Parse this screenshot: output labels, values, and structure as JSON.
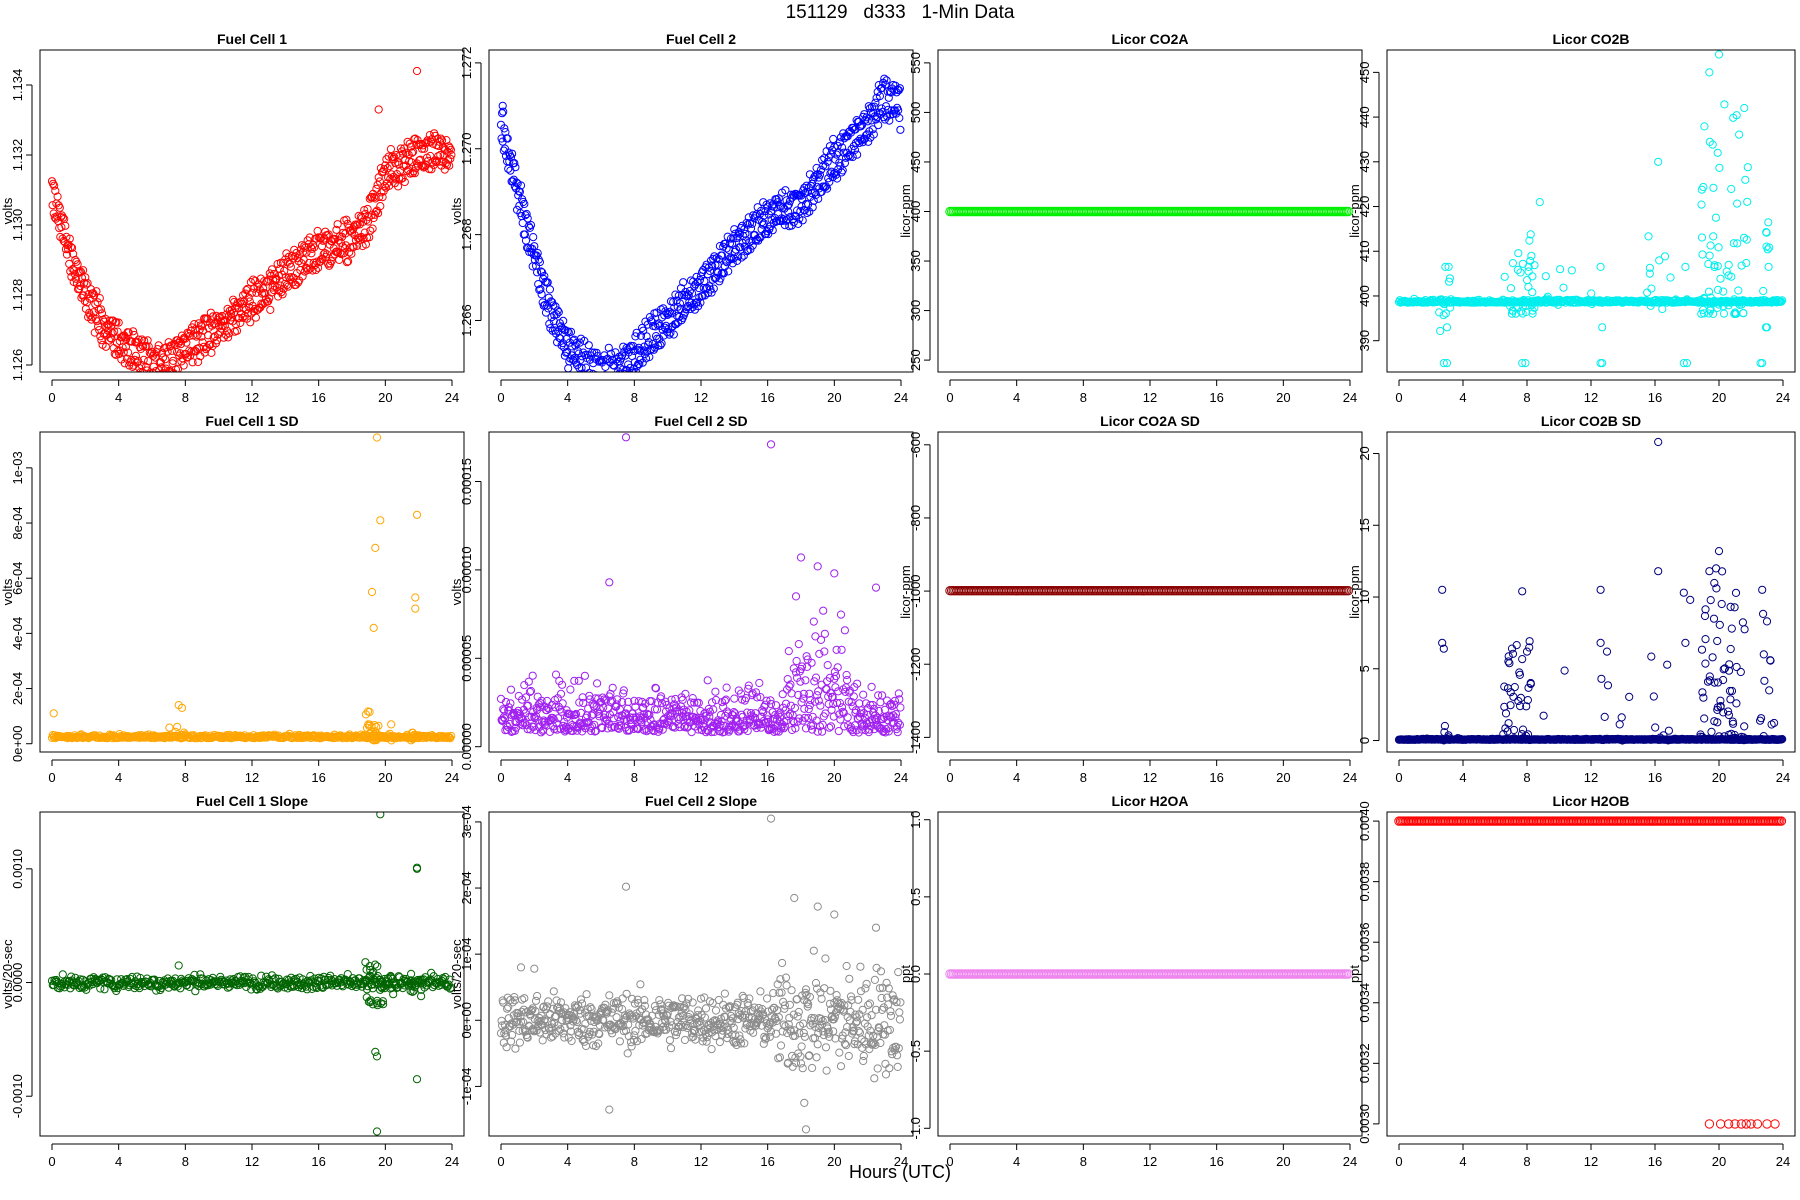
{
  "title": "151129   d333   1-Min Data",
  "xlabel": "Hours (UTC)",
  "chart_data": [
    {
      "type": "scatter",
      "title": "Fuel Cell 1",
      "ylabel": "volts",
      "color": "#ff0000",
      "xlim": [
        0,
        24
      ],
      "xticks": [
        "0",
        "4",
        "8",
        "12",
        "16",
        "20",
        "24"
      ],
      "ylim": [
        1.1258,
        1.135
      ],
      "yticks": [
        "1.126",
        "1.128",
        "1.130",
        "1.132",
        "1.134"
      ],
      "pattern": "fc",
      "profile": [
        [
          0,
          1.1308
        ],
        [
          0.5,
          1.1302
        ],
        [
          1,
          1.1292
        ],
        [
          2,
          1.128
        ],
        [
          3,
          1.1272
        ],
        [
          4,
          1.1267
        ],
        [
          5,
          1.1263
        ],
        [
          6,
          1.1261
        ],
        [
          7,
          1.1261
        ],
        [
          8,
          1.1265
        ],
        [
          10,
          1.1271
        ],
        [
          12,
          1.1278
        ],
        [
          14,
          1.1286
        ],
        [
          16,
          1.1293
        ],
        [
          17,
          1.1294
        ],
        [
          18,
          1.1296
        ],
        [
          19,
          1.1301
        ],
        [
          19.4,
          1.1306
        ],
        [
          20,
          1.1314
        ],
        [
          22,
          1.132
        ],
        [
          24,
          1.1321
        ]
      ],
      "band": 0.0006,
      "noise": 0.00015,
      "outliers": [
        [
          21.9,
          1.1344
        ],
        [
          19.6,
          1.1333
        ]
      ]
    },
    {
      "type": "scatter",
      "title": "Fuel Cell 2",
      "ylabel": "volts",
      "color": "#0000ff",
      "xlim": [
        0,
        24
      ],
      "xticks": [
        "0",
        "4",
        "8",
        "12",
        "16",
        "20",
        "24"
      ],
      "ylim": [
        1.2648,
        1.2723
      ],
      "yticks": [
        "1.266",
        "1.268",
        "1.270",
        "1.272"
      ],
      "pattern": "fc",
      "profile": [
        [
          0,
          1.2705
        ],
        [
          0.5,
          1.2698
        ],
        [
          1,
          1.269
        ],
        [
          2,
          1.2675
        ],
        [
          3,
          1.2662
        ],
        [
          4,
          1.2654
        ],
        [
          5,
          1.265
        ],
        [
          6,
          1.2648
        ],
        [
          7,
          1.2649
        ],
        [
          8,
          1.2652
        ],
        [
          10,
          1.266
        ],
        [
          12,
          1.2668
        ],
        [
          14,
          1.2677
        ],
        [
          16,
          1.2684
        ],
        [
          18,
          1.2687
        ],
        [
          20,
          1.2697
        ],
        [
          22,
          1.2706
        ],
        [
          23,
          1.2712
        ],
        [
          24,
          1.271
        ]
      ],
      "band": 0.0005,
      "noise": 0.00012,
      "outliers": [
        [
          0.1,
          1.271
        ]
      ]
    },
    {
      "type": "scatter",
      "title": "Licor CO2A",
      "ylabel": "licor-ppm",
      "color": "#00ee00",
      "xlim": [
        0,
        24
      ],
      "xticks": [
        "0",
        "4",
        "8",
        "12",
        "16",
        "20",
        "24"
      ],
      "ylim": [
        238,
        563
      ],
      "yticks": [
        "250",
        "300",
        "350",
        "400",
        "450",
        "500",
        "550"
      ],
      "pattern": "const",
      "constant": 400,
      "outliers": []
    },
    {
      "type": "scatter",
      "title": "Licor CO2B",
      "ylabel": "licor-ppm",
      "color": "#00eeee",
      "xlim": [
        0,
        24
      ],
      "xticks": [
        "0",
        "4",
        "8",
        "12",
        "16",
        "20",
        "24"
      ],
      "ylim": [
        383,
        455
      ],
      "yticks": [
        "390",
        "400",
        "410",
        "420",
        "430",
        "440",
        "450"
      ],
      "pattern": "base",
      "base": 398.5,
      "noise": 0.3,
      "spikes": [
        [
          6.5,
          8.5,
          396,
          414,
          35
        ],
        [
          18.8,
          21.8,
          396,
          445,
          70
        ],
        [
          2.5,
          3.2,
          392,
          407,
          8
        ],
        [
          15.5,
          17.0,
          397,
          418,
          10
        ],
        [
          22.7,
          23.3,
          392,
          420,
          8
        ],
        [
          9,
          15,
          398,
          406,
          10
        ]
      ],
      "outliers": [
        [
          20.0,
          454
        ],
        [
          19.4,
          450
        ],
        [
          16.2,
          430
        ],
        [
          8.8,
          421
        ],
        [
          2.8,
          385
        ],
        [
          3.0,
          385
        ],
        [
          7.7,
          385
        ],
        [
          7.9,
          385
        ],
        [
          12.6,
          385
        ],
        [
          12.7,
          385
        ],
        [
          17.8,
          385
        ],
        [
          18.0,
          385
        ],
        [
          22.6,
          385
        ],
        [
          22.7,
          385
        ],
        [
          2.9,
          406.5
        ],
        [
          3.1,
          406.5
        ],
        [
          8.1,
          406.5
        ],
        [
          12.6,
          406.5
        ],
        [
          17.9,
          406.5
        ],
        [
          23.1,
          406.5
        ],
        [
          3.0,
          393
        ],
        [
          12.7,
          393
        ],
        [
          23.0,
          393
        ]
      ]
    },
    {
      "type": "scatter",
      "title": "Fuel Cell 1 SD",
      "ylabel": "volts",
      "color": "#ffa500",
      "xlim": [
        0,
        24
      ],
      "xticks": [
        "0",
        "4",
        "8",
        "12",
        "16",
        "20",
        "24"
      ],
      "ylim": [
        -3e-05,
        0.00113
      ],
      "yticks": [
        "0e+00",
        "2e-04",
        "4e-04",
        "6e-04",
        "8e-04",
        "1e-03"
      ],
      "pattern": "base",
      "base": 2e-05,
      "noise": 6e-06,
      "spikes": [
        [
          18.8,
          20.5,
          1e-05,
          0.00012,
          30
        ],
        [
          7.0,
          8.0,
          1e-05,
          8e-05,
          6
        ],
        [
          21.5,
          22.3,
          1e-05,
          0.0001,
          8
        ]
      ],
      "outliers": [
        [
          19.5,
          0.00111
        ],
        [
          21.9,
          0.00083
        ],
        [
          19.7,
          0.00081
        ],
        [
          19.4,
          0.00071
        ],
        [
          19.2,
          0.00055
        ],
        [
          21.8,
          0.00053
        ],
        [
          21.8,
          0.00049
        ],
        [
          19.3,
          0.00042
        ],
        [
          0.1,
          0.00011
        ],
        [
          7.6,
          0.00014
        ],
        [
          7.8,
          0.00013
        ]
      ]
    },
    {
      "type": "scatter",
      "title": "Fuel Cell 2 SD",
      "ylabel": "volts",
      "color": "#a020f0",
      "xlim": [
        0,
        24
      ],
      "xticks": [
        "0",
        "4",
        "8",
        "12",
        "16",
        "20",
        "24"
      ],
      "ylim": [
        -3e-06,
        0.000178
      ],
      "yticks": [
        "0.00000",
        "0.00005",
        "0.00010",
        "0.00015"
      ],
      "pattern": "sd2",
      "base": 8e-06,
      "noise": 1.2e-05,
      "outliers": [
        [
          7.5,
          0.000175
        ],
        [
          16.2,
          0.000171
        ],
        [
          18.0,
          0.000107
        ],
        [
          19.0,
          0.000102
        ],
        [
          20.0,
          9.8e-05
        ],
        [
          6.5,
          9.3e-05
        ],
        [
          22.5,
          9e-05
        ],
        [
          17.7,
          8.5e-05
        ]
      ]
    },
    {
      "type": "scatter",
      "title": "Licor CO2A SD",
      "ylabel": "licor-ppm",
      "color": "#8b0000",
      "xlim": [
        0,
        24
      ],
      "xticks": [
        "0",
        "4",
        "8",
        "12",
        "16",
        "20",
        "24"
      ],
      "ylim": [
        -1440,
        -565
      ],
      "yticks": [
        "-1400",
        "-1200",
        "-1000",
        "-800",
        "-600"
      ],
      "pattern": "const",
      "constant": -999,
      "outliers": []
    },
    {
      "type": "scatter",
      "title": "Licor CO2B SD",
      "ylabel": "licor-ppm",
      "color": "#000080",
      "xlim": [
        0,
        24
      ],
      "xticks": [
        "0",
        "4",
        "8",
        "12",
        "16",
        "20",
        "24"
      ],
      "ylim": [
        -0.8,
        21.5
      ],
      "yticks": [
        "0",
        "5",
        "10",
        "15",
        "20"
      ],
      "pattern": "base",
      "base": 0.05,
      "noise": 0.03,
      "spikes": [
        [
          6.5,
          8.3,
          0,
          7,
          40
        ],
        [
          18.8,
          21.6,
          0,
          12,
          70
        ],
        [
          2.6,
          3.8,
          0,
          3,
          6
        ],
        [
          15.5,
          17.0,
          0,
          6,
          8
        ],
        [
          22.5,
          23.5,
          0,
          9,
          10
        ],
        [
          9,
          15,
          0,
          5,
          10
        ]
      ],
      "outliers": [
        [
          16.2,
          20.8
        ],
        [
          20.0,
          13.2
        ],
        [
          19.4,
          11.8
        ],
        [
          16.2,
          11.8
        ],
        [
          12.6,
          10.5
        ],
        [
          2.7,
          10.5
        ],
        [
          7.7,
          10.4
        ],
        [
          22.7,
          10.5
        ],
        [
          17.8,
          10.3
        ],
        [
          18.2,
          9.8
        ],
        [
          23.0,
          8.3
        ],
        [
          20.8,
          7.8
        ],
        [
          12.6,
          6.8
        ],
        [
          2.7,
          6.8
        ],
        [
          2.8,
          6.4
        ],
        [
          8.0,
          6.2
        ],
        [
          17.9,
          6.8
        ],
        [
          22.8,
          6.0
        ],
        [
          13.0,
          6.2
        ],
        [
          23.2,
          5.6
        ]
      ]
    },
    {
      "type": "scatter",
      "title": "Fuel Cell 1 Slope",
      "ylabel": "volts/20-sec",
      "color": "#006400",
      "xlim": [
        0,
        24
      ],
      "xticks": [
        "0",
        "4",
        "8",
        "12",
        "16",
        "20",
        "24"
      ],
      "ylim": [
        -0.00135,
        0.0015
      ],
      "yticks": [
        "-0.0010",
        "0.0000",
        "0.0010"
      ],
      "pattern": "slope",
      "base": 0,
      "noise": 3e-05,
      "spikes": [
        [
          18.8,
          20.5,
          -0.0002,
          0.0002,
          30
        ],
        [
          21.5,
          22.3,
          -0.00012,
          0.00012,
          8
        ]
      ],
      "outliers": [
        [
          19.7,
          0.00148
        ],
        [
          21.9,
          0.00101
        ],
        [
          21.9,
          0.001
        ],
        [
          7.6,
          0.00015
        ],
        [
          19.4,
          -0.00061
        ],
        [
          19.5,
          -0.00065
        ],
        [
          21.9,
          -0.00085
        ],
        [
          19.5,
          -0.00131
        ]
      ]
    },
    {
      "type": "scatter",
      "title": "Fuel Cell 2 Slope",
      "ylabel": "volts/20-sec",
      "color": "#8c8c8c",
      "xlim": [
        0,
        24
      ],
      "xticks": [
        "0",
        "4",
        "8",
        "12",
        "16",
        "20",
        "24"
      ],
      "ylim": [
        -0.000175,
        0.000315
      ],
      "yticks": [
        "-1e-04",
        "0e+00",
        "1e-04",
        "2e-04",
        "3e-04"
      ],
      "pattern": "slope2",
      "base": 0,
      "noise": 2e-05,
      "outliers": [
        [
          16.2,
          0.000305
        ],
        [
          7.5,
          0.000202
        ],
        [
          17.6,
          0.000185
        ],
        [
          19.0,
          0.000172
        ],
        [
          20.0,
          0.00016
        ],
        [
          22.5,
          0.00014
        ],
        [
          6.5,
          -0.000135
        ],
        [
          18.2,
          -0.000125
        ],
        [
          18.3,
          -0.000165
        ],
        [
          1.2,
          8e-05
        ],
        [
          2.0,
          7.8e-05
        ]
      ]
    },
    {
      "type": "scatter",
      "title": "Licor H2OA",
      "ylabel": "ppt",
      "color": "#ee82ee",
      "xlim": [
        0,
        24
      ],
      "xticks": [
        "0",
        "4",
        "8",
        "12",
        "16",
        "20",
        "24"
      ],
      "ylim": [
        -1.05,
        1.05
      ],
      "yticks": [
        "-1.0",
        "-0.5",
        "0.0",
        "0.5",
        "1.0"
      ],
      "pattern": "const",
      "constant": 0,
      "outliers": []
    },
    {
      "type": "scatter",
      "title": "Licor H2OB",
      "ylabel": "ppt",
      "color": "#ff0000",
      "xlim": [
        0,
        24
      ],
      "xticks": [
        "0",
        "4",
        "8",
        "12",
        "16",
        "20",
        "24"
      ],
      "ylim": [
        0.00296,
        0.00403
      ],
      "yticks": [
        "0.0030",
        "0.0032",
        "0.0034",
        "0.0036",
        "0.0038",
        "0.0040"
      ],
      "pattern": "const",
      "constant": 0.004,
      "outliers": [
        [
          19.4,
          0.003
        ],
        [
          20.1,
          0.003
        ],
        [
          20.6,
          0.003
        ],
        [
          21.0,
          0.003
        ],
        [
          21.4,
          0.003
        ],
        [
          21.7,
          0.003
        ],
        [
          22.0,
          0.003
        ],
        [
          22.4,
          0.003
        ],
        [
          23.0,
          0.003
        ],
        [
          23.5,
          0.003
        ]
      ]
    }
  ]
}
